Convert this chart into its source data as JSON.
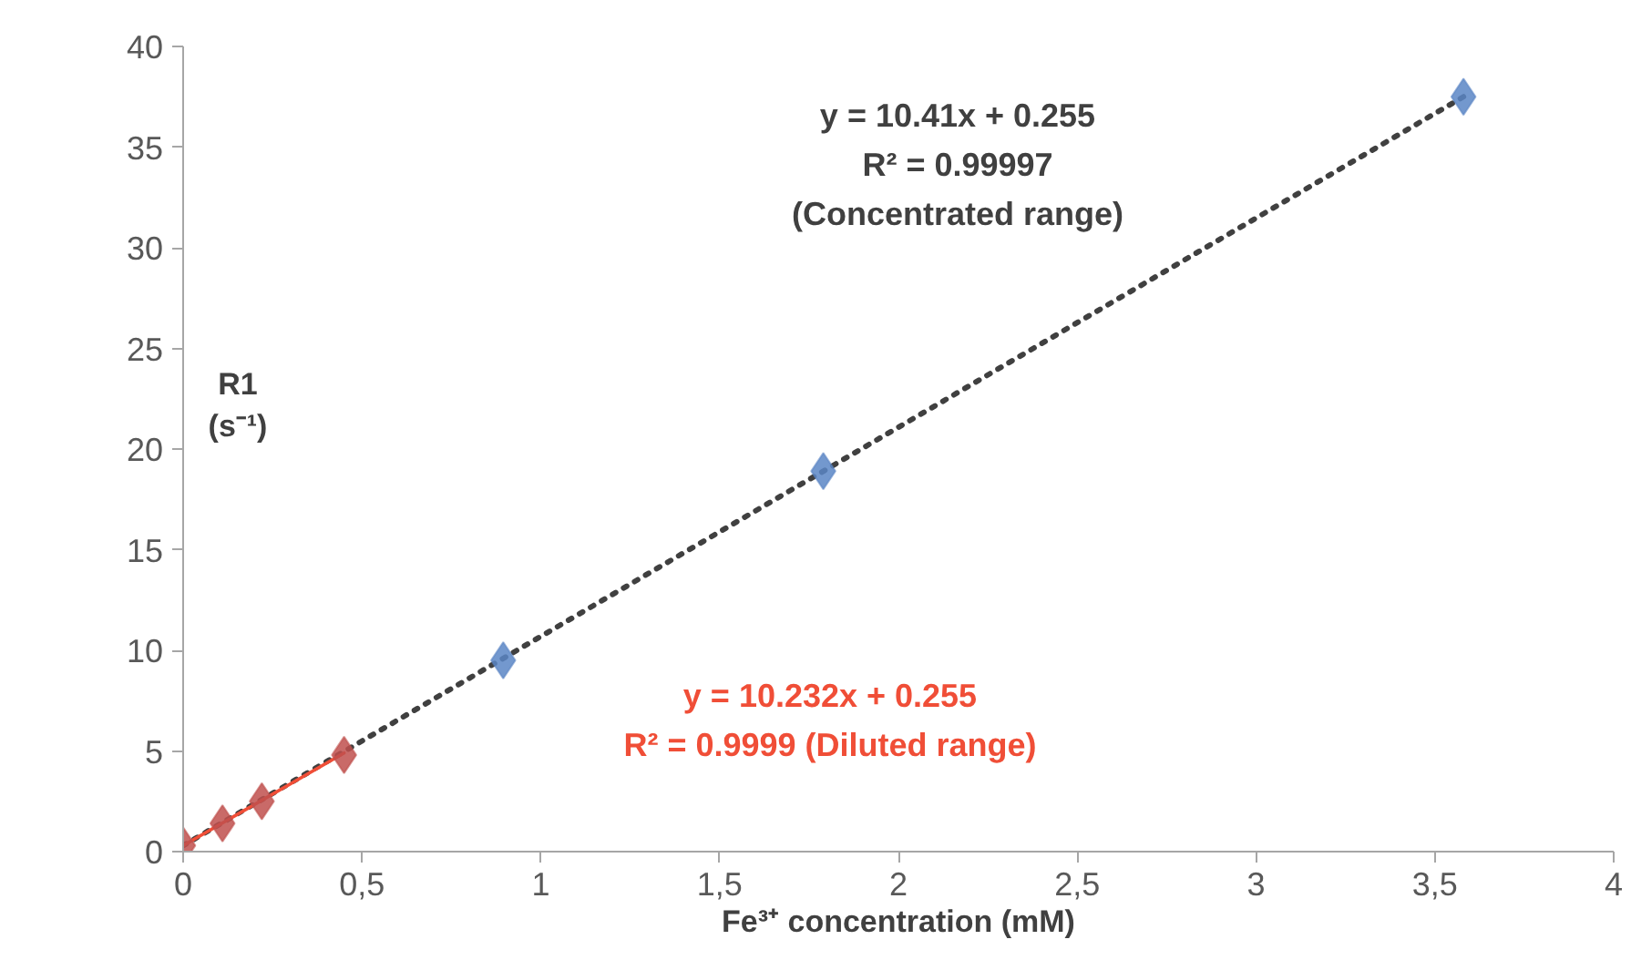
{
  "chart_data": {
    "type": "scatter",
    "xlabel": "Fe³⁺ concentration (mM)",
    "ylabel": "R1\n(s⁻¹)",
    "xlim": [
      0,
      4
    ],
    "ylim": [
      0,
      40
    ],
    "xticks": [
      0,
      {
        "value": 0.5,
        "label": "0,5"
      },
      1,
      {
        "value": 1.5,
        "label": "1,5"
      },
      2,
      {
        "value": 2.5,
        "label": "2,5"
      },
      3,
      {
        "value": 3.5,
        "label": "3,5"
      },
      4
    ],
    "yticks": [
      0,
      5,
      10,
      15,
      20,
      25,
      30,
      35,
      40
    ],
    "grid": false,
    "marker": "diamond",
    "series": [
      {
        "type": "line",
        "color": "#404040",
        "line_style": "dotted",
        "marker": "none",
        "x": [
          0,
          3.58
        ],
        "values": [
          0.3,
          37.5
        ]
      },
      {
        "type": "line",
        "color": "#f04e37",
        "line_style": "solid",
        "marker": "none",
        "x": [
          0,
          0.45
        ],
        "values": [
          0.3,
          4.9
        ]
      },
      {
        "color": "#5b86c5",
        "x": [
          0.895,
          1.79,
          3.58
        ],
        "values": [
          9.5,
          18.9,
          37.5
        ]
      },
      {
        "color": "#c0504d",
        "x": [
          0,
          0.11,
          0.22,
          0.45
        ],
        "values": [
          0.3,
          1.4,
          2.5,
          4.8
        ]
      }
    ],
    "annotations": [
      "y = 10.41x + 0.255\nR² = 0.99997\n(Concentrated range)",
      "y = 10.232x + 0.255\nR² = 0.9999 (Diluted range)"
    ]
  }
}
